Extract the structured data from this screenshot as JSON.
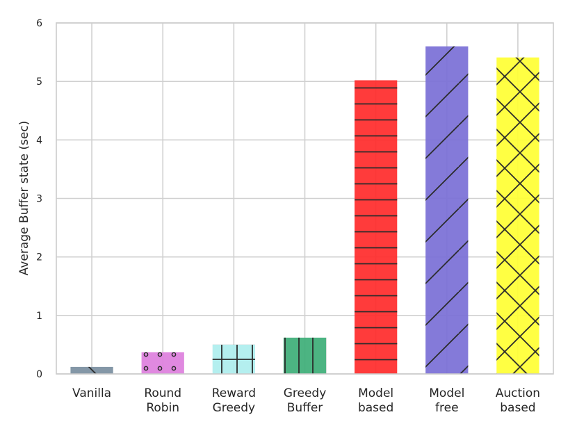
{
  "chart_data": {
    "type": "bar",
    "ylabel": "Average Buffer state (sec)",
    "xlabel": "",
    "ylim": [
      0,
      6
    ],
    "yticks": [
      "0",
      "1",
      "2",
      "3",
      "4",
      "5",
      "6"
    ],
    "grid": true,
    "categories": [
      [
        "Vanilla"
      ],
      [
        "Round",
        "Robin"
      ],
      [
        "Reward",
        "Greedy"
      ],
      [
        "Greedy",
        "Buffer"
      ],
      [
        "Model",
        "based"
      ],
      [
        "Model",
        "free"
      ],
      [
        "Auction",
        "based"
      ]
    ],
    "values": [
      0.12,
      0.37,
      0.5,
      0.62,
      5.02,
      5.6,
      5.41
    ],
    "colors": [
      "#7a8ea0",
      "#dd7fdd",
      "#aeeeee",
      "#3dae77",
      "#ff2a2a",
      "#7a6fd6",
      "#ffff33"
    ],
    "hatches": [
      "backslash",
      "dots",
      "grid",
      "vertical",
      "horizontal",
      "slash",
      "cross"
    ]
  }
}
